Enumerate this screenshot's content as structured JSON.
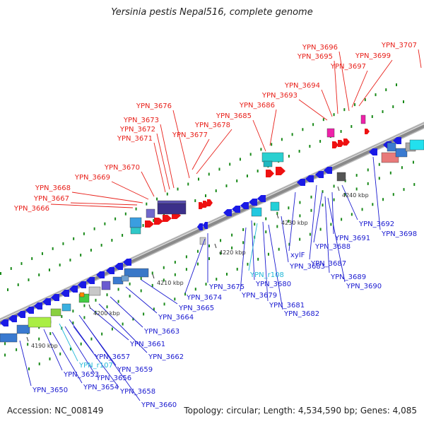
{
  "title": "Yersinia pestis Nepal516, complete genome",
  "footer": {
    "accession": "Accession: NC_008149",
    "summary": "Topology: circular; Length: 4,534,590 bp; Genes: 4,085"
  },
  "colors": {
    "forward_label": "#e8201a",
    "reverse_label": "#1a1ad0",
    "rna_label": "#22b8d8",
    "backbone": "#8a8a8a",
    "tick": "#1a8a1a"
  },
  "kbp_labels": [
    "4190 kbp",
    "4200 kbp",
    "4210 kbp",
    "4220 kbp",
    "4230 kbp",
    "4240 kbp"
  ],
  "forward_genes": [
    "YPN_3666",
    "YPN_3667",
    "YPN_3668",
    "YPN_3669",
    "YPN_3670",
    "YPN_3671",
    "YPN_3672",
    "YPN_3673",
    "YPN_3676",
    "YPN_3677",
    "YPN_3678",
    "YPN_3685",
    "YPN_3686",
    "YPN_3693",
    "YPN_3694",
    "YPN_3695",
    "YPN_3696",
    "YPN_3697",
    "YPN_3699",
    "YPN_3707"
  ],
  "reverse_genes": [
    "YPN_3650",
    "YPN_3653",
    "YPN_r107",
    "YPN_3654",
    "YPN_3656",
    "YPN_3657",
    "YPN_3658",
    "YPN_3659",
    "YPN_3660",
    "YPN_3661",
    "YPN_3662",
    "YPN_3663",
    "YPN_3664",
    "YPN_3665",
    "YPN_3674",
    "YPN_3675",
    "YPN_3679",
    "YPN_3680",
    "YPN_r108",
    "YPN_3681",
    "YPN_3682",
    "YPN_3683",
    "xylF",
    "YPN_3687",
    "YPN_3688",
    "YPN_3689",
    "YPN_3690",
    "YPN_3691",
    "YPN_3692",
    "YPN_3698"
  ],
  "rna_genes": [
    "YPN_r107",
    "YPN_r108"
  ]
}
